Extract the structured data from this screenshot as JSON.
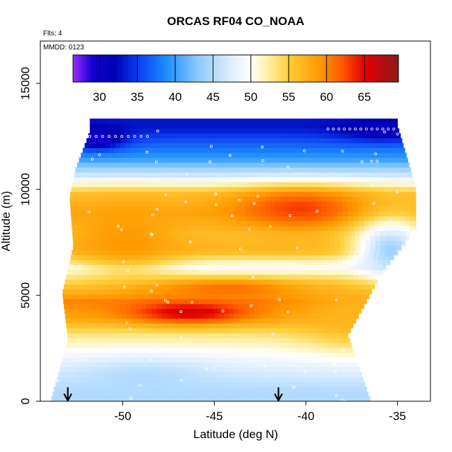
{
  "chart_data": {
    "type": "heatmap",
    "title": "ORCAS RF04 CO_NOAA",
    "subtitle": "Flts: 4",
    "panel_note": "MMDD: 0123",
    "xlabel": "Latitude (deg N)",
    "ylabel": "Altitude (m)",
    "xlim": [
      -54.5,
      -33.2
    ],
    "ylim": [
      0,
      17000
    ],
    "x_ticks": [
      -50,
      -45,
      -40,
      -35
    ],
    "x_tick_labels": [
      "-50",
      "-45",
      "-40",
      "-35"
    ],
    "y_ticks": [
      0,
      5000,
      10000,
      15000
    ],
    "y_tick_labels": [
      "0",
      "5000",
      "10000",
      "15000"
    ],
    "colorbar": {
      "min": 26.5,
      "max": 69.5,
      "ticks": [
        30,
        35,
        40,
        45,
        50,
        55,
        60,
        65
      ],
      "tick_labels": [
        "30",
        "35",
        "40",
        "45",
        "50",
        "55",
        "60",
        "65"
      ],
      "stops": [
        {
          "value": 26.5,
          "color": "#9a2bff"
        },
        {
          "value": 29,
          "color": "#1400d0"
        },
        {
          "value": 32,
          "color": "#0000b4"
        },
        {
          "value": 35,
          "color": "#0a3cf0"
        },
        {
          "value": 39,
          "color": "#1e90ff"
        },
        {
          "value": 43,
          "color": "#8ccaff"
        },
        {
          "value": 47,
          "color": "#d8ecff"
        },
        {
          "value": 50,
          "color": "#ffffff"
        },
        {
          "value": 52,
          "color": "#fff2b0"
        },
        {
          "value": 55,
          "color": "#ffce3a"
        },
        {
          "value": 59,
          "color": "#ff9a00"
        },
        {
          "value": 62,
          "color": "#ff5a00"
        },
        {
          "value": 65,
          "color": "#e60000"
        },
        {
          "value": 69.5,
          "color": "#8a1a1a"
        }
      ]
    },
    "field": {
      "grid_x": [
        -54.5,
        -33.2
      ],
      "grid_y": [
        0,
        13300
      ],
      "background_value": 53.5,
      "layers": [
        {
          "alt": 400,
          "value": 45
        },
        {
          "alt": 1200,
          "value": 47
        },
        {
          "alt": 2200,
          "value": 50
        },
        {
          "alt": 3000,
          "value": 53
        },
        {
          "alt": 3800,
          "value": 58
        },
        {
          "alt": 4600,
          "value": 60
        },
        {
          "alt": 5400,
          "value": 55
        },
        {
          "alt": 6200,
          "value": 49
        },
        {
          "alt": 7000,
          "value": 57
        },
        {
          "alt": 7800,
          "value": 56
        },
        {
          "alt": 8800,
          "value": 58
        },
        {
          "alt": 9700,
          "value": 56
        },
        {
          "alt": 10500,
          "value": 47
        },
        {
          "alt": 11300,
          "value": 40
        },
        {
          "alt": 12200,
          "value": 36
        },
        {
          "alt": 12800,
          "value": 33
        }
      ],
      "hotspots": [
        {
          "lat": -46.5,
          "alt": 4100,
          "value": 66,
          "rlat": 3.2,
          "ralt": 500
        },
        {
          "lat": -44.5,
          "alt": 5200,
          "value": 61,
          "rlat": 4.5,
          "ralt": 500
        },
        {
          "lat": -40.5,
          "alt": 9000,
          "value": 63,
          "rlat": 3.5,
          "ralt": 900
        },
        {
          "lat": -50.0,
          "alt": 7500,
          "value": 59,
          "rlat": 3.0,
          "ralt": 1500
        },
        {
          "lat": -51.5,
          "alt": 12300,
          "value": 29,
          "rlat": 1.5,
          "ralt": 500
        },
        {
          "lat": -36.0,
          "alt": 12700,
          "value": 31,
          "rlat": 2.5,
          "ralt": 500
        },
        {
          "lat": -35.5,
          "alt": 7000,
          "value": 44,
          "rlat": 2.0,
          "ralt": 1500
        },
        {
          "lat": -37.5,
          "alt": 4000,
          "value": 57,
          "rlat": 3.0,
          "ralt": 1500
        },
        {
          "lat": -49.0,
          "alt": 1000,
          "value": 45,
          "rlat": 4.0,
          "ralt": 900
        }
      ],
      "profile_boundary": {
        "left_edge": [
          {
            "alt": 0,
            "lat": -53.9
          },
          {
            "alt": 2800,
            "lat": -53.0
          },
          {
            "alt": 5000,
            "lat": -53.3
          },
          {
            "alt": 7200,
            "lat": -52.7
          },
          {
            "alt": 9500,
            "lat": -52.9
          },
          {
            "alt": 10800,
            "lat": -52.6
          },
          {
            "alt": 12600,
            "lat": -51.8
          }
        ],
        "right_edge": [
          {
            "alt": 0,
            "lat": -36.5
          },
          {
            "alt": 3000,
            "lat": -37.7
          },
          {
            "alt": 6000,
            "lat": -35.8
          },
          {
            "alt": 8000,
            "lat": -34.0
          },
          {
            "alt": 10000,
            "lat": -34.0
          },
          {
            "alt": 12900,
            "lat": -35.0
          }
        ]
      }
    },
    "sample_points_note": "white circles show flight sample locations",
    "markers": [
      {
        "type": "arrow",
        "lat": -53.0,
        "label": ""
      },
      {
        "type": "arrow",
        "lat": -41.5,
        "label": ""
      }
    ]
  }
}
